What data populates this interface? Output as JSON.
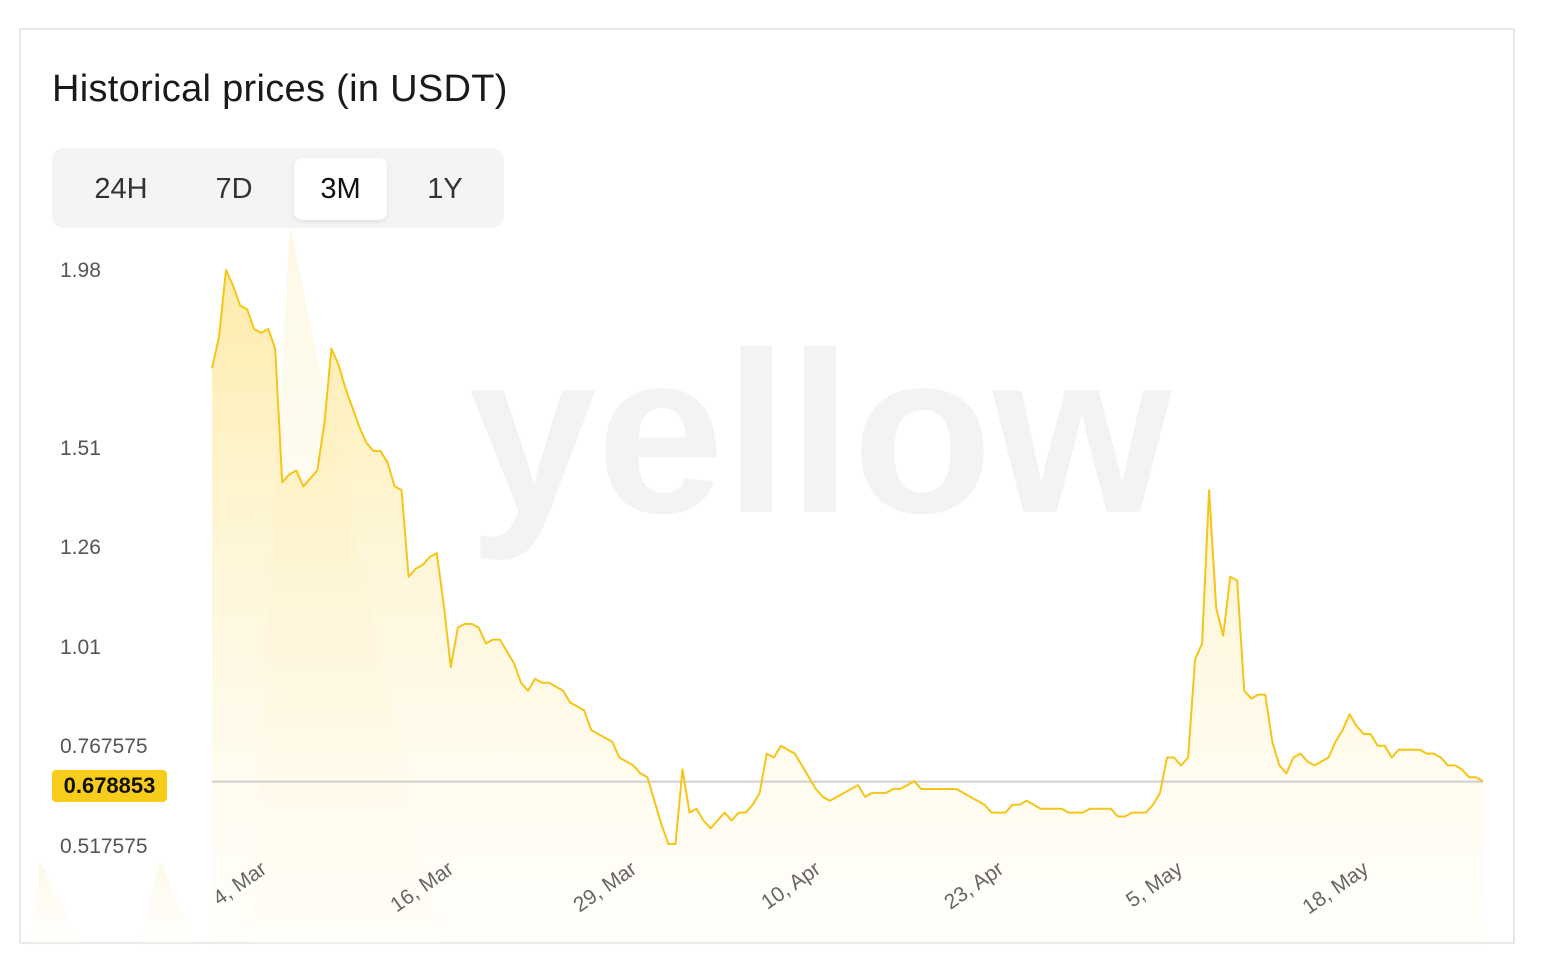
{
  "header": {
    "title": "Historical prices (in USDT)"
  },
  "tabs": [
    {
      "label": "24H",
      "active": false
    },
    {
      "label": "7D",
      "active": false
    },
    {
      "label": "3M",
      "active": true
    },
    {
      "label": "1Y",
      "active": false
    }
  ],
  "watermark": {
    "text": "yellow"
  },
  "colors": {
    "line": "#f5c518",
    "fill": "#fde9a0",
    "badge": "#f8cc1b",
    "reference": "#cfcfcf"
  },
  "current_price": "0.678853",
  "chart_data": {
    "type": "area",
    "ylim": [
      0.517575,
      1.98
    ],
    "y_ticks": [
      "1.98",
      "1.51",
      "1.26",
      "1.01",
      "0.767575",
      "0.517575"
    ],
    "y_tick_values": [
      1.98,
      1.51,
      1.26,
      1.01,
      0.767575,
      0.517575
    ],
    "x_ticks": [
      "4, Mar",
      "16, Mar",
      "29, Mar",
      "10, Apr",
      "23, Apr",
      "5, May",
      "18, May"
    ],
    "reference_value": 0.678853,
    "series": [
      {
        "values": [
          1.73,
          1.81,
          1.98,
          1.94,
          1.89,
          1.88,
          1.83,
          1.82,
          1.83,
          1.78,
          1.44,
          1.46,
          1.47,
          1.43,
          1.45,
          1.47,
          1.59,
          1.78,
          1.74,
          1.68,
          1.63,
          1.58,
          1.54,
          1.52,
          1.52,
          1.49,
          1.43,
          1.42,
          1.2,
          1.22,
          1.23,
          1.25,
          1.26,
          1.13,
          0.97,
          1.07,
          1.08,
          1.08,
          1.07,
          1.03,
          1.04,
          1.04,
          1.01,
          0.98,
          0.93,
          0.91,
          0.94,
          0.93,
          0.93,
          0.92,
          0.91,
          0.88,
          0.87,
          0.86,
          0.81,
          0.8,
          0.79,
          0.78,
          0.74,
          0.73,
          0.72,
          0.7,
          0.69,
          0.63,
          0.57,
          0.52,
          0.52,
          0.71,
          0.6,
          0.61,
          0.58,
          0.56,
          0.58,
          0.6,
          0.58,
          0.6,
          0.6,
          0.62,
          0.65,
          0.75,
          0.74,
          0.77,
          0.76,
          0.75,
          0.72,
          0.69,
          0.66,
          0.64,
          0.63,
          0.64,
          0.65,
          0.66,
          0.67,
          0.64,
          0.65,
          0.65,
          0.65,
          0.66,
          0.66,
          0.67,
          0.68,
          0.66,
          0.66,
          0.66,
          0.66,
          0.66,
          0.66,
          0.65,
          0.64,
          0.63,
          0.62,
          0.6,
          0.6,
          0.6,
          0.62,
          0.62,
          0.63,
          0.62,
          0.61,
          0.61,
          0.61,
          0.61,
          0.6,
          0.6,
          0.6,
          0.61,
          0.61,
          0.61,
          0.61,
          0.59,
          0.59,
          0.6,
          0.6,
          0.6,
          0.62,
          0.65,
          0.74,
          0.74,
          0.72,
          0.74,
          0.99,
          1.03,
          1.42,
          1.12,
          1.05,
          1.2,
          1.19,
          0.91,
          0.89,
          0.9,
          0.9,
          0.78,
          0.72,
          0.7,
          0.74,
          0.75,
          0.73,
          0.72,
          0.73,
          0.74,
          0.78,
          0.81,
          0.85,
          0.82,
          0.8,
          0.8,
          0.77,
          0.77,
          0.74,
          0.76,
          0.76,
          0.76,
          0.76,
          0.75,
          0.75,
          0.74,
          0.72,
          0.72,
          0.71,
          0.69,
          0.69,
          0.68
        ]
      }
    ]
  }
}
